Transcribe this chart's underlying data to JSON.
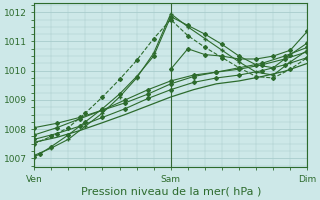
{
  "title": "",
  "xlabel": "Pression niveau de la mer( hPa )",
  "ylabel": "",
  "bg_color": "#cde8e8",
  "grid_color": "#a8cccc",
  "line_color": "#2d6b2d",
  "ylim": [
    1006.7,
    1012.3
  ],
  "xlim": [
    0,
    48
  ],
  "xtick_positions": [
    0,
    24,
    48
  ],
  "xtick_labels": [
    "Ven",
    "Sam",
    "Dim"
  ],
  "ytick_positions": [
    1007,
    1008,
    1009,
    1010,
    1011,
    1012
  ],
  "series": [
    {
      "x": [
        0,
        1,
        3,
        6,
        9,
        12,
        15,
        18,
        21,
        24,
        27,
        30,
        33,
        36,
        39,
        42,
        45,
        48
      ],
      "y": [
        1007.05,
        1007.15,
        1007.4,
        1007.8,
        1008.25,
        1008.7,
        1009.2,
        1009.8,
        1010.5,
        1011.85,
        1011.55,
        1011.25,
        1010.9,
        1010.5,
        1010.2,
        1010.1,
        1010.55,
        1010.95
      ],
      "marker": "D",
      "ms": 2.0,
      "lw": 0.8,
      "ls": "-"
    },
    {
      "x": [
        0,
        3,
        6,
        9,
        12,
        15,
        18,
        21,
        24,
        27,
        30,
        33,
        36,
        39,
        42,
        45,
        48
      ],
      "y": [
        1007.1,
        1007.35,
        1007.65,
        1008.1,
        1008.55,
        1009.1,
        1009.75,
        1010.6,
        1011.95,
        1011.5,
        1011.1,
        1010.7,
        1010.3,
        1009.95,
        1009.85,
        1010.3,
        1010.7
      ],
      "marker": "+",
      "ms": 3.5,
      "lw": 0.8,
      "ls": "-"
    },
    {
      "x": [
        0,
        3,
        6,
        9,
        12,
        15,
        18,
        21,
        24,
        27,
        30,
        33,
        36,
        39,
        42,
        45,
        48
      ],
      "y": [
        1007.5,
        1007.75,
        1008.05,
        1008.55,
        1009.1,
        1009.7,
        1010.35,
        1011.1,
        1011.75,
        1011.2,
        1010.8,
        1010.45,
        1010.1,
        1009.8,
        1009.75,
        1010.05,
        1010.45
      ],
      "marker": "D",
      "ms": 2.0,
      "lw": 0.8,
      "ls": "--"
    },
    {
      "x": [
        0,
        4,
        8,
        12,
        16,
        20,
        24,
        28,
        32,
        36,
        40,
        44,
        48
      ],
      "y": [
        1007.8,
        1008.05,
        1008.35,
        1008.65,
        1009.0,
        1009.35,
        1009.65,
        1009.85,
        1009.95,
        1010.05,
        1010.2,
        1010.4,
        1010.65
      ],
      "marker": "D",
      "ms": 2.0,
      "lw": 0.8,
      "ls": "-"
    },
    {
      "x": [
        0,
        4,
        8,
        12,
        16,
        20,
        24,
        28,
        32,
        36,
        40,
        44,
        48
      ],
      "y": [
        1007.65,
        1007.85,
        1008.1,
        1008.4,
        1008.7,
        1009.05,
        1009.35,
        1009.6,
        1009.75,
        1009.85,
        1010.0,
        1010.2,
        1010.45
      ],
      "marker": "D",
      "ms": 2.0,
      "lw": 0.8,
      "ls": "-"
    },
    {
      "x": [
        0,
        4,
        8,
        12,
        16,
        20,
        24,
        28,
        32,
        36,
        40,
        44,
        48
      ],
      "y": [
        1007.55,
        1007.72,
        1007.95,
        1008.22,
        1008.5,
        1008.8,
        1009.1,
        1009.35,
        1009.55,
        1009.65,
        1009.8,
        1009.98,
        1010.25
      ],
      "marker": null,
      "ms": 0,
      "lw": 0.9,
      "ls": "-"
    },
    {
      "x": [
        0,
        4,
        8,
        12,
        16,
        20,
        24,
        28,
        32,
        36,
        40,
        44,
        48
      ],
      "y": [
        1008.05,
        1008.2,
        1008.4,
        1008.65,
        1008.9,
        1009.2,
        1009.55,
        1009.8,
        1009.95,
        1010.1,
        1010.25,
        1010.5,
        1010.8
      ],
      "marker": "D",
      "ms": 2.0,
      "lw": 0.8,
      "ls": "-"
    },
    {
      "x": [
        24,
        27,
        30,
        33,
        36,
        39,
        42,
        45,
        48
      ],
      "y": [
        1010.05,
        1010.75,
        1010.55,
        1010.5,
        1010.4,
        1010.4,
        1010.5,
        1010.7,
        1011.35
      ],
      "marker": "D",
      "ms": 2.0,
      "lw": 0.8,
      "ls": "-"
    }
  ],
  "vline_positions": [
    0,
    24,
    48
  ],
  "vline_color": "#336633",
  "xlabel_fontsize": 8,
  "tick_fontsize": 6.5,
  "tick_color": "#2d6b2d",
  "axis_color": "#2d6b2d"
}
